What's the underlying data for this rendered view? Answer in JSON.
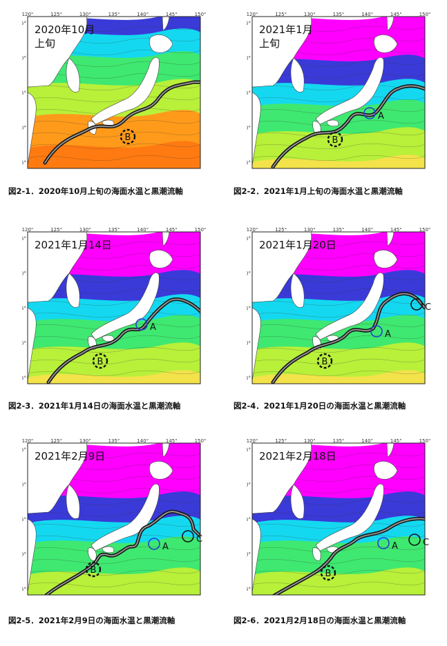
{
  "panels": [
    {
      "id": "p1",
      "date_line1": "2020年10月",
      "date_line2": "上旬",
      "caption": "図2-1．2020年10月上旬の海面水温と黒潮流軸",
      "markers": [
        "B"
      ]
    },
    {
      "id": "p2",
      "date_line1": "2021年1月",
      "date_line2": "上旬",
      "caption": "図2-2．2021年1月上旬の海面水温と黒潮流軸",
      "markers": [
        "A",
        "B"
      ]
    },
    {
      "id": "p3",
      "date_line1": "2021年1月14日",
      "date_line2": "",
      "caption": "図2-3．2021年1月14日の海面水温と黒潮流軸",
      "markers": [
        "A",
        "B"
      ]
    },
    {
      "id": "p4",
      "date_line1": "2021年1月20日",
      "date_line2": "",
      "caption": "図2-4．2021年1月20日の海面水温と黒潮流軸",
      "markers": [
        "A",
        "B",
        "C"
      ]
    },
    {
      "id": "p5",
      "date_line1": "2021年2月9日",
      "date_line2": "",
      "caption": "図2-5．2021年2月9日の海面水温と黒潮流軸",
      "markers": [
        "A",
        "B",
        "C"
      ]
    },
    {
      "id": "p6",
      "date_line1": "2021年2月18日",
      "date_line2": "",
      "caption": "図2-6．2021月2月18日の海面水温と黒潮流軸",
      "markers": [
        "A",
        "B",
        "C"
      ]
    }
  ],
  "axis": {
    "lon_ticks": [
      "120°",
      "125°",
      "130°",
      "135°",
      "140°",
      "145°",
      "150°"
    ],
    "lat_ticks": [
      "45°",
      "40°",
      "35°",
      "30°",
      "25°"
    ]
  },
  "legend_colors": {
    "cold": "#ff00ff",
    "cool": "#3a3ad8",
    "mid": "#14d8f0",
    "warm": "#3fe870",
    "warmer": "#b8f03a",
    "hot": "#ff9a1a",
    "land": "#ffffff",
    "ocean_unknown": "#f2f2f2"
  },
  "labels": {
    "A": "A",
    "B": "B",
    "C": "C"
  }
}
